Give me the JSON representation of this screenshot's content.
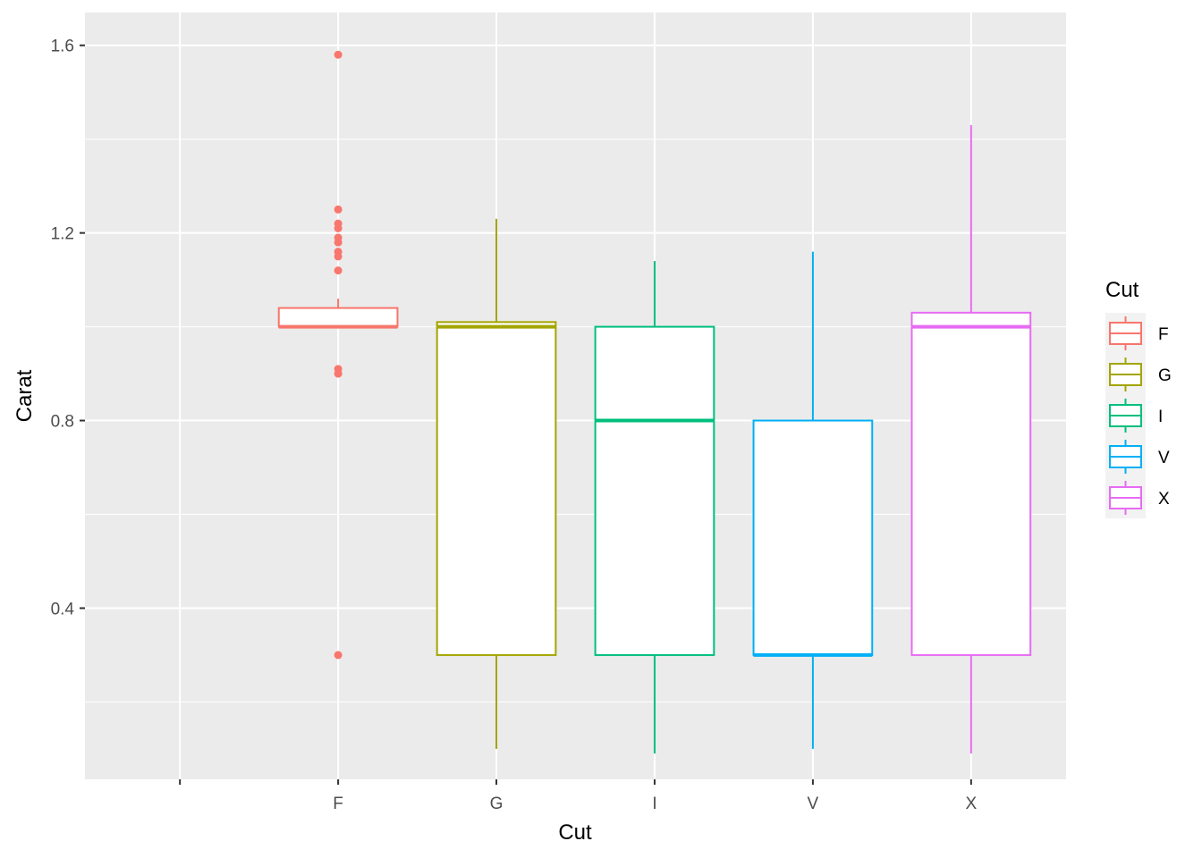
{
  "chart_data": {
    "type": "boxplot",
    "xlabel": "Cut",
    "ylabel": "Carat",
    "categories": [
      "",
      "F",
      "G",
      "I",
      "V",
      "X"
    ],
    "ylim": [
      0.035,
      1.67
    ],
    "y_ticks": [
      0.4,
      0.8,
      1.2,
      1.6
    ],
    "y_tick_labels": [
      "0.4",
      "0.8",
      "1.2",
      "1.6"
    ],
    "grid": true,
    "legend": {
      "title": "Cut",
      "position": "right",
      "entries": [
        "F",
        "G",
        "I",
        "V",
        "X"
      ]
    },
    "series": [
      {
        "category": "F",
        "color": "#F8766D",
        "whisker_low": 1.0,
        "q1": 1.0,
        "median": 1.0,
        "q3": 1.04,
        "whisker_high": 1.06,
        "outliers": [
          1.58,
          1.25,
          1.22,
          1.21,
          1.19,
          1.18,
          1.16,
          1.15,
          1.12,
          0.91,
          0.9,
          0.3
        ]
      },
      {
        "category": "G",
        "color": "#A3A500",
        "whisker_low": 0.1,
        "q1": 0.3,
        "median": 1.0,
        "q3": 1.01,
        "whisker_high": 1.23,
        "outliers": []
      },
      {
        "category": "I",
        "color": "#00BF7D",
        "whisker_low": 0.09,
        "q1": 0.3,
        "median": 0.8,
        "q3": 1.0,
        "whisker_high": 1.14,
        "outliers": []
      },
      {
        "category": "V",
        "color": "#00B0F6",
        "whisker_low": 0.1,
        "q1": 0.3,
        "median": 0.3,
        "q3": 0.8,
        "whisker_high": 1.16,
        "outliers": []
      },
      {
        "category": "X",
        "color": "#E76BF3",
        "whisker_low": 0.09,
        "q1": 0.3,
        "median": 1.0,
        "q3": 1.03,
        "whisker_high": 1.43,
        "outliers": []
      }
    ]
  }
}
